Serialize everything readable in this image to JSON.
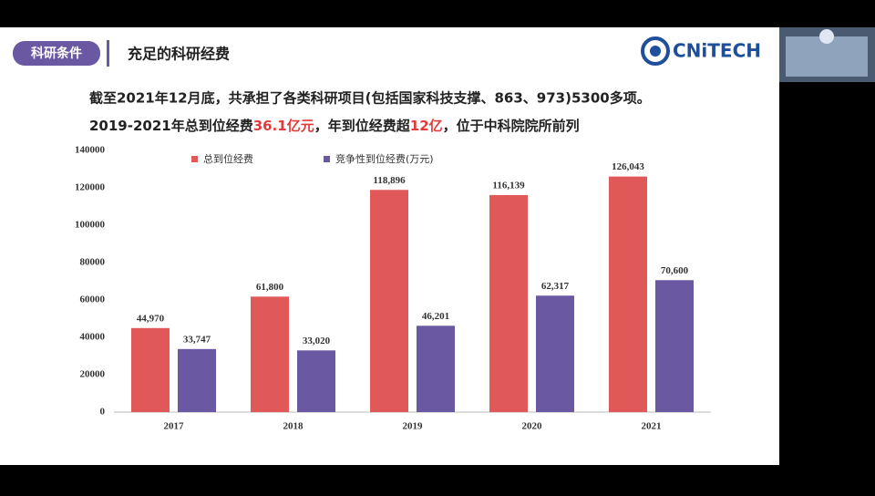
{
  "header": {
    "tag": "科研条件",
    "title": "充足的科研经费",
    "logo": "CNiTECH"
  },
  "text": {
    "line1": "截至2021年12月底，共承担了各类科研项目(包括国家科技支撑、863、973)5300多项。",
    "line2": [
      "2019-2021年总到位经费",
      "36.1亿元",
      "，年到位经费超",
      "12亿",
      "，位于中科院院所前列"
    ]
  },
  "chart_data": {
    "type": "bar",
    "categories": [
      "2017",
      "2018",
      "2019",
      "2020",
      "2021"
    ],
    "series": [
      {
        "name": "总到位经费",
        "color": "#e05858",
        "values": [
          44970,
          61800,
          118896,
          116139,
          126043
        ],
        "value_labels": [
          "44,970",
          "61,800",
          "118,896",
          "116,139",
          "126,043"
        ]
      },
      {
        "name": "竞争性到位经费(万元)",
        "color": "#6a58a2",
        "values": [
          33747,
          33020,
          46201,
          62317,
          70600
        ],
        "value_labels": [
          "33,747",
          "33,020",
          "46,201",
          "62,317",
          "70,600"
        ]
      }
    ],
    "ylim": [
      0,
      140000
    ],
    "yticks": [
      0,
      20000,
      40000,
      60000,
      80000,
      100000,
      120000,
      140000
    ],
    "grid": false
  }
}
